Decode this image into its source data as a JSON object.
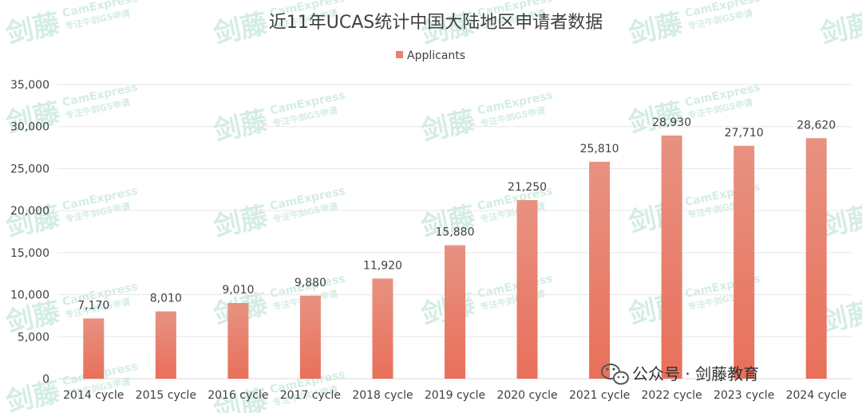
{
  "chart_data": {
    "type": "bar",
    "title": "近11年UCAS统计中国大陆地区申请者数据",
    "categories": [
      "2014 cycle",
      "2015 cycle",
      "2016 cycle",
      "2017 cycle",
      "2018 cycle",
      "2019 cycle",
      "2020 cycle",
      "2021 cycle",
      "2022 cycle",
      "2023 cycle",
      "2024 cycle"
    ],
    "series": [
      {
        "name": "Applicants",
        "values": [
          7170,
          8010,
          9010,
          9880,
          11920,
          15880,
          21250,
          25810,
          28930,
          27710,
          28620
        ],
        "color": "#e8826f"
      }
    ],
    "data_labels": [
      "7,170",
      "8,010",
      "9,010",
      "9,880",
      "11,920",
      "15,880",
      "21,250",
      "25,810",
      "28,930",
      "27,710",
      "28,620"
    ],
    "y_ticks": [
      "0",
      "5,000",
      "10,000",
      "15,000",
      "20,000",
      "25,000",
      "30,000",
      "35,000"
    ],
    "ylim": [
      0,
      35000
    ],
    "grid": true,
    "legend_position": "top-center",
    "xlabel": "",
    "ylabel": ""
  },
  "watermark": {
    "logo": "剑藤",
    "brand": "CamExpress",
    "tagline": "专注牛剑G5申请"
  },
  "footer": {
    "icon": "wechat-icon",
    "text": "公众号 · 剑藤教育"
  },
  "colors": {
    "bar_top": "#e89282",
    "bar_bottom": "#e8705a",
    "gridline": "#e6e6e6",
    "watermark": "#d4ede3"
  }
}
